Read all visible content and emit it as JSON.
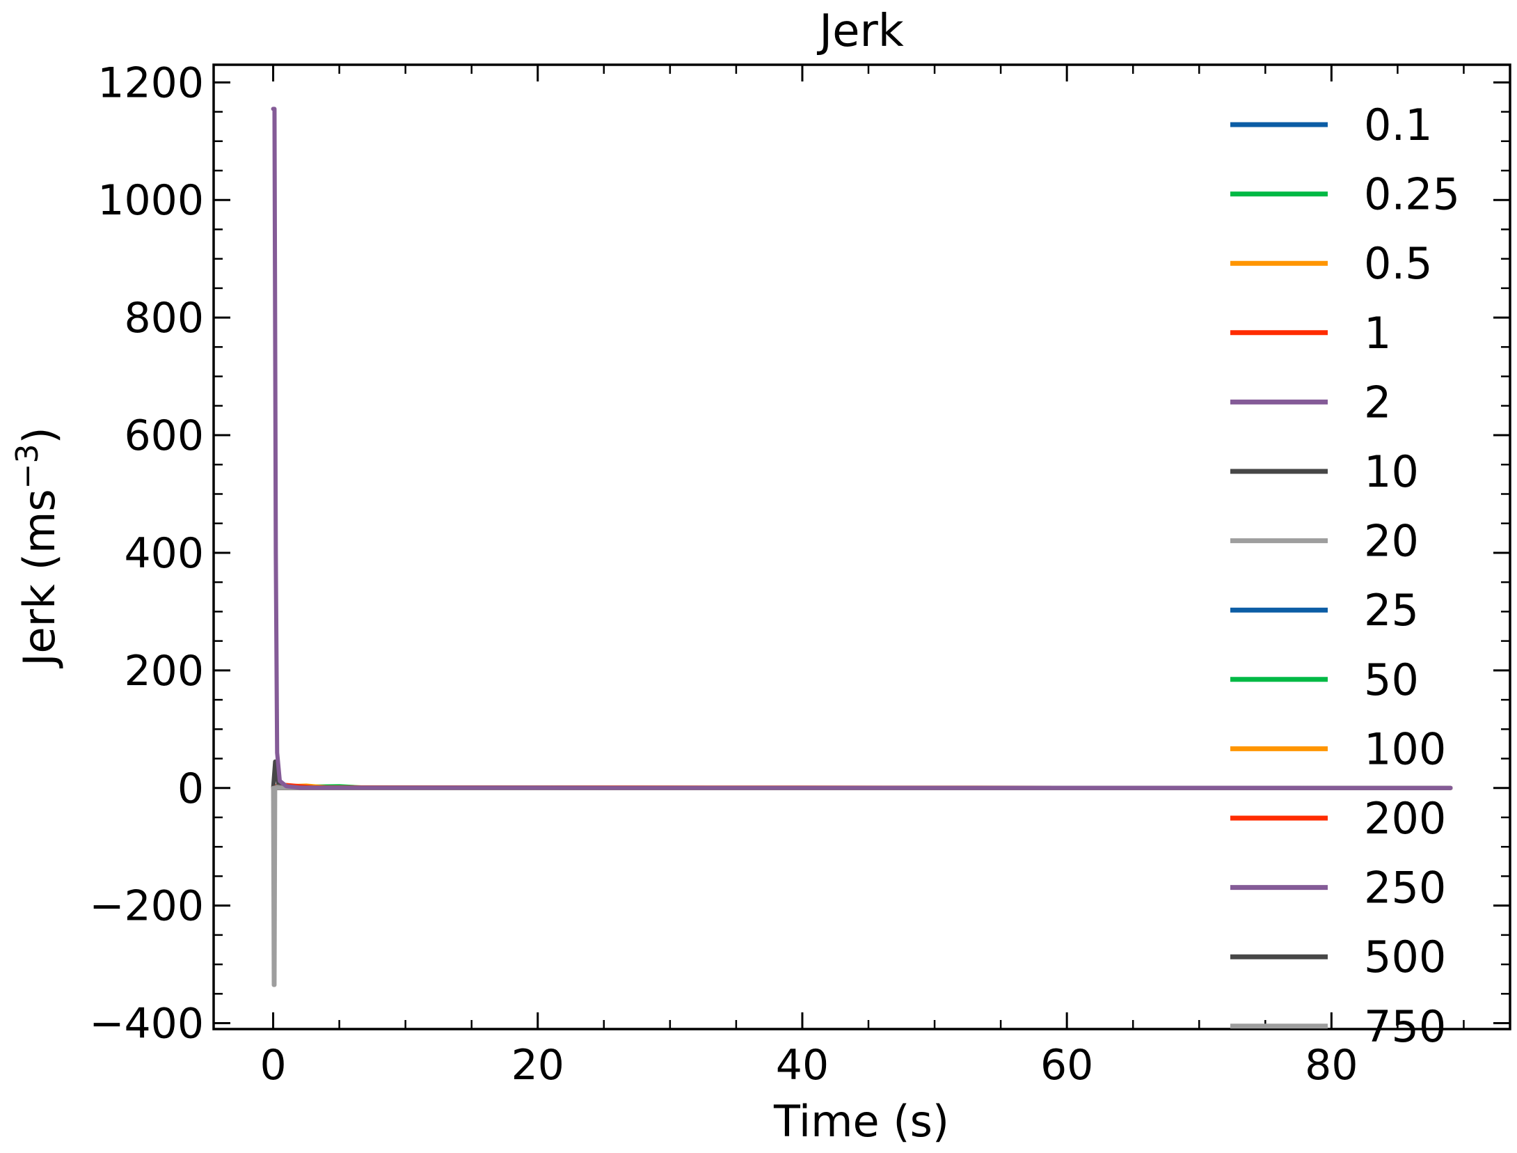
{
  "chart_data": {
    "type": "line",
    "title": "Jerk",
    "xlabel": "Time (s)",
    "ylabel": {
      "base": "Jerk (ms",
      "exponent": "−3",
      "suffix": ")"
    },
    "xlim": [
      -4.5,
      93.5
    ],
    "ylim": [
      -410,
      1230
    ],
    "x_ticks": [
      {
        "value": 0,
        "label": "0"
      },
      {
        "value": 20,
        "label": "20"
      },
      {
        "value": 40,
        "label": "40"
      },
      {
        "value": 60,
        "label": "60"
      },
      {
        "value": 80,
        "label": "80"
      }
    ],
    "y_ticks": [
      {
        "value": -400,
        "label": "−400"
      },
      {
        "value": -200,
        "label": "−200"
      },
      {
        "value": 0,
        "label": "0"
      },
      {
        "value": 200,
        "label": "200"
      },
      {
        "value": 400,
        "label": "400"
      },
      {
        "value": 600,
        "label": "600"
      },
      {
        "value": 800,
        "label": "800"
      },
      {
        "value": 1000,
        "label": "1000"
      },
      {
        "value": 1200,
        "label": "1200"
      }
    ],
    "x_minor_step": 5,
    "y_minor_step": 50,
    "grid": false,
    "legend_position": "right",
    "series": [
      {
        "name": "0.1",
        "color": "#0C5DA5",
        "points": [
          [
            0,
            0
          ],
          [
            0.5,
            2
          ],
          [
            1.5,
            0.5
          ],
          [
            89,
            0
          ]
        ]
      },
      {
        "name": "0.25",
        "color": "#00B945",
        "points": [
          [
            0,
            0
          ],
          [
            2,
            2
          ],
          [
            5,
            3
          ],
          [
            7,
            0.5
          ],
          [
            89,
            0
          ]
        ]
      },
      {
        "name": "0.5",
        "color": "#FF9500",
        "points": [
          [
            0,
            0
          ],
          [
            1,
            3
          ],
          [
            2.5,
            4
          ],
          [
            4,
            1
          ],
          [
            89,
            0
          ]
        ]
      },
      {
        "name": "1",
        "color": "#FF2C00",
        "points": [
          [
            0,
            0
          ],
          [
            0.5,
            6
          ],
          [
            1.5,
            4
          ],
          [
            3,
            1
          ],
          [
            89,
            0
          ]
        ]
      },
      {
        "name": "2",
        "color": "#845B97",
        "points": [
          [
            0,
            1155
          ],
          [
            0.1,
            1155
          ],
          [
            0.2,
            400
          ],
          [
            0.3,
            60
          ],
          [
            0.5,
            12
          ],
          [
            1,
            3
          ],
          [
            2,
            0.5
          ],
          [
            89,
            0
          ]
        ]
      },
      {
        "name": "10",
        "color": "#474747",
        "points": [
          [
            0,
            0
          ],
          [
            0.15,
            45
          ],
          [
            0.4,
            5
          ],
          [
            1,
            0.5
          ],
          [
            89,
            0
          ]
        ]
      },
      {
        "name": "20",
        "color": "#9E9E9E",
        "points": [
          [
            0,
            0
          ],
          [
            0.3,
            2
          ],
          [
            1,
            0
          ],
          [
            89,
            0
          ]
        ]
      },
      {
        "name": "25",
        "color": "#0C5DA5",
        "points": [
          [
            0,
            0
          ],
          [
            89,
            0
          ]
        ]
      },
      {
        "name": "50",
        "color": "#00B945",
        "points": [
          [
            0,
            0
          ],
          [
            89,
            0
          ]
        ]
      },
      {
        "name": "100",
        "color": "#FF9500",
        "points": [
          [
            0,
            0
          ],
          [
            89,
            0
          ]
        ]
      },
      {
        "name": "200",
        "color": "#FF2C00",
        "points": [
          [
            0,
            0
          ],
          [
            89,
            0
          ]
        ]
      },
      {
        "name": "250",
        "color": "#845B97",
        "points": [
          [
            0,
            0
          ],
          [
            89,
            0
          ]
        ]
      },
      {
        "name": "500",
        "color": "#474747",
        "points": [
          [
            0,
            0
          ],
          [
            89,
            0
          ]
        ]
      },
      {
        "name": "750",
        "color": "#9E9E9E",
        "points": [
          [
            0,
            0
          ],
          [
            0.05,
            -335
          ],
          [
            0.1,
            -335
          ],
          [
            0.15,
            0
          ],
          [
            89,
            0
          ]
        ]
      }
    ]
  }
}
